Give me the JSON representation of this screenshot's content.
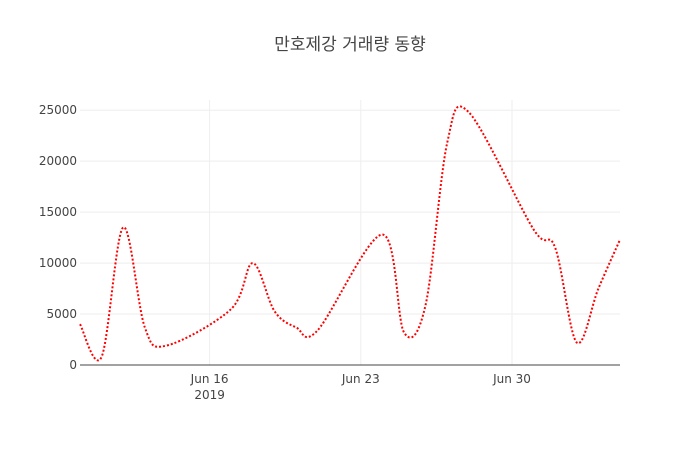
{
  "chart_data": {
    "type": "line",
    "title": "만호제강 거래량 동향",
    "xlabel": "",
    "ylabel": "",
    "x_tick_labels": [
      {
        "date": "2019-06-16",
        "label": "Jun 16",
        "sublabel": "2019"
      },
      {
        "date": "2019-06-23",
        "label": "Jun 23",
        "sublabel": ""
      },
      {
        "date": "2019-06-30",
        "label": "Jun 30",
        "sublabel": ""
      }
    ],
    "y_tick_labels": [
      "0",
      "5000",
      "10000",
      "15000",
      "20000",
      "25000"
    ],
    "ylim": [
      0,
      26000
    ],
    "xlim": [
      "2019-06-10",
      "2019-07-05"
    ],
    "grid": true,
    "legend": "none",
    "series": [
      {
        "color": "#ff0000",
        "dash": "dot",
        "x": [
          "2019-06-10",
          "2019-06-11",
          "2019-06-12",
          "2019-06-13",
          "2019-06-14",
          "2019-06-17",
          "2019-06-18",
          "2019-06-19",
          "2019-06-20",
          "2019-06-21",
          "2019-06-24",
          "2019-06-25",
          "2019-06-26",
          "2019-06-27",
          "2019-06-28",
          "2019-07-01",
          "2019-07-02",
          "2019-07-03",
          "2019-07-04",
          "2019-07-05"
        ],
        "y": [
          4000,
          800,
          13500,
          3700,
          1900,
          5500,
          10000,
          5300,
          3700,
          3400,
          12800,
          3200,
          5900,
          21800,
          24800,
          13300,
          11500,
          2200,
          7500,
          12300
        ]
      }
    ]
  }
}
